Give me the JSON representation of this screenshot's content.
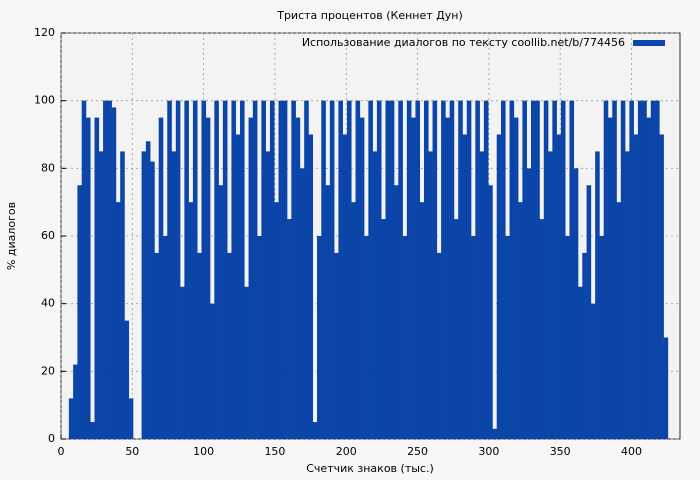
{
  "chart_data": {
    "type": "bar",
    "title": "Триста процентов (Кеннет Дун)",
    "x_label": "Счетчик знаков (тыс.)",
    "y_label": "% диалогов",
    "legend_position": "upper right",
    "grid": true,
    "xlim": [
      0,
      434
    ],
    "ylim": [
      0,
      120
    ],
    "xticks": [
      0,
      50,
      100,
      150,
      200,
      250,
      300,
      350,
      400
    ],
    "yticks": [
      0,
      20,
      40,
      60,
      80,
      100,
      120
    ],
    "x": [
      7,
      10,
      13,
      16,
      19,
      22,
      25,
      28,
      31,
      34,
      37,
      40,
      43,
      46,
      49,
      52,
      55,
      58,
      61,
      64,
      67,
      70,
      73,
      76,
      79,
      82,
      85,
      88,
      91,
      94,
      97,
      100,
      103,
      106,
      109,
      112,
      115,
      118,
      121,
      124,
      127,
      130,
      133,
      136,
      139,
      142,
      145,
      148,
      151,
      154,
      157,
      160,
      163,
      166,
      169,
      172,
      175,
      178,
      181,
      184,
      187,
      190,
      193,
      196,
      199,
      202,
      205,
      208,
      211,
      214,
      217,
      220,
      223,
      226,
      229,
      232,
      235,
      238,
      241,
      244,
      247,
      250,
      253,
      256,
      259,
      262,
      265,
      268,
      271,
      274,
      277,
      280,
      283,
      286,
      289,
      292,
      295,
      298,
      301,
      304,
      307,
      310,
      313,
      316,
      319,
      322,
      325,
      328,
      331,
      334,
      337,
      340,
      343,
      346,
      349,
      352,
      355,
      358,
      361,
      364,
      367,
      370,
      373,
      376,
      379,
      382,
      385,
      388,
      391,
      394,
      397,
      400,
      403,
      406,
      409,
      412,
      415,
      418,
      421,
      424
    ],
    "series": [
      {
        "name": "Использование диалогов по тексту coollib.net/b/774456",
        "color": "#0b45a8",
        "values": [
          12,
          22,
          75,
          100,
          95,
          5,
          95,
          85,
          100,
          100,
          98,
          70,
          85,
          35,
          12,
          0,
          0,
          85,
          88,
          82,
          55,
          95,
          60,
          100,
          85,
          100,
          45,
          100,
          70,
          100,
          55,
          100,
          95,
          40,
          100,
          75,
          100,
          55,
          100,
          90,
          100,
          45,
          95,
          100,
          60,
          100,
          85,
          100,
          70,
          100,
          100,
          65,
          100,
          95,
          80,
          100,
          90,
          5,
          60,
          100,
          75,
          100,
          55,
          100,
          90,
          100,
          70,
          100,
          95,
          60,
          100,
          85,
          100,
          65,
          100,
          100,
          75,
          100,
          60,
          100,
          95,
          100,
          70,
          100,
          85,
          100,
          55,
          100,
          95,
          100,
          65,
          100,
          90,
          100,
          60,
          100,
          85,
          100,
          75,
          3,
          90,
          100,
          60,
          100,
          95,
          70,
          100,
          80,
          100,
          100,
          65,
          100,
          85,
          100,
          90,
          100,
          60,
          100,
          80,
          45,
          55,
          75,
          40,
          85,
          60,
          100,
          95,
          100,
          70,
          100,
          85,
          100,
          90,
          100,
          100,
          95,
          100,
          100,
          90,
          30
        ]
      }
    ]
  }
}
